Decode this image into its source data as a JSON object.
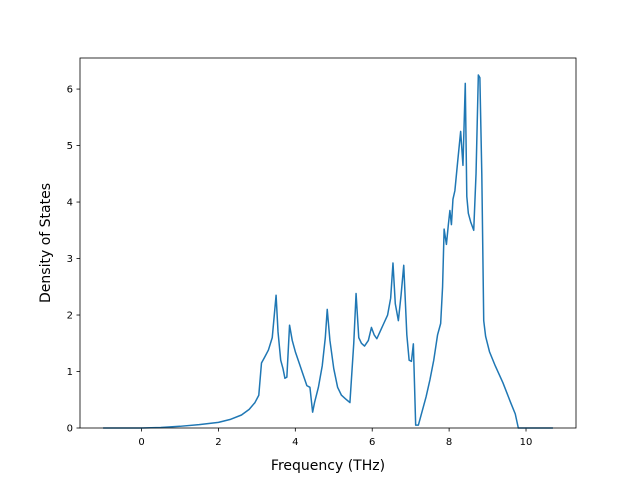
{
  "chart_data": {
    "type": "line",
    "title": "",
    "xlabel": "Frequency (THz)",
    "ylabel": "Density of States",
    "xlim": [
      -1.6,
      11.3
    ],
    "ylim": [
      0,
      6.55
    ],
    "xticks": [
      0,
      2,
      4,
      6,
      8,
      10
    ],
    "yticks": [
      0,
      1,
      2,
      3,
      4,
      5,
      6
    ],
    "grid": false,
    "legend": "none",
    "colors": {
      "line": "#1f77b4",
      "axes": "#000000",
      "background": "#ffffff"
    },
    "series": [
      {
        "x": [
          -1.0,
          0.0,
          0.5,
          1.0,
          1.5,
          2.0,
          2.3,
          2.6,
          2.8,
          2.95,
          3.05,
          3.12,
          3.2,
          3.3,
          3.4,
          3.5,
          3.55,
          3.62,
          3.68,
          3.73,
          3.78,
          3.85,
          3.92,
          4.0,
          4.1,
          4.2,
          4.3,
          4.38,
          4.45,
          4.5,
          4.6,
          4.7,
          4.78,
          4.83,
          4.9,
          5.0,
          5.1,
          5.2,
          5.3,
          5.42,
          5.52,
          5.58,
          5.65,
          5.72,
          5.8,
          5.9,
          5.98,
          6.05,
          6.12,
          6.2,
          6.3,
          6.4,
          6.48,
          6.54,
          6.6,
          6.68,
          6.75,
          6.82,
          6.9,
          6.96,
          7.02,
          7.07,
          7.13,
          7.2,
          7.3,
          7.4,
          7.5,
          7.6,
          7.7,
          7.78,
          7.83,
          7.87,
          7.93,
          7.98,
          8.02,
          8.06,
          8.1,
          8.15,
          8.22,
          8.3,
          8.36,
          8.42,
          8.46,
          8.5,
          8.56,
          8.64,
          8.7,
          8.76,
          8.8,
          8.85,
          8.9,
          8.95,
          9.05,
          9.2,
          9.4,
          9.6,
          9.72,
          9.8,
          10.0,
          10.3,
          10.7
        ],
        "y": [
          0.0,
          0.0,
          0.01,
          0.03,
          0.06,
          0.1,
          0.15,
          0.23,
          0.33,
          0.45,
          0.58,
          1.15,
          1.25,
          1.38,
          1.6,
          2.35,
          1.7,
          1.2,
          1.05,
          0.88,
          0.9,
          1.82,
          1.55,
          1.35,
          1.15,
          0.95,
          0.75,
          0.72,
          0.28,
          0.45,
          0.72,
          1.1,
          1.6,
          2.1,
          1.55,
          1.05,
          0.72,
          0.58,
          0.52,
          0.45,
          1.5,
          2.38,
          1.6,
          1.5,
          1.45,
          1.55,
          1.78,
          1.65,
          1.58,
          1.7,
          1.85,
          2.0,
          2.3,
          2.92,
          2.2,
          1.9,
          2.35,
          2.88,
          1.65,
          1.2,
          1.18,
          1.49,
          0.05,
          0.05,
          0.3,
          0.55,
          0.85,
          1.2,
          1.65,
          1.85,
          2.5,
          3.52,
          3.25,
          3.6,
          3.85,
          3.6,
          4.05,
          4.2,
          4.7,
          5.25,
          4.65,
          6.1,
          4.1,
          3.8,
          3.65,
          3.5,
          4.5,
          6.25,
          6.2,
          4.5,
          1.9,
          1.62,
          1.35,
          1.1,
          0.8,
          0.45,
          0.25,
          0.0,
          0.0,
          0.0,
          0.0
        ]
      }
    ]
  }
}
